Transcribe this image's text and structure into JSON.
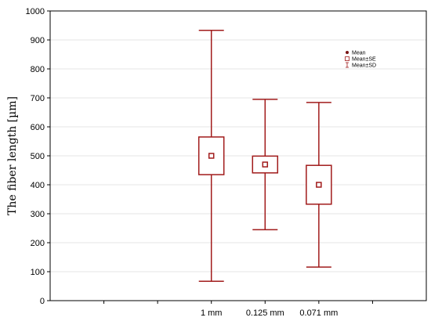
{
  "chart_data": {
    "type": "box",
    "ylabel": "The fiber length  [µm]",
    "xlabel": "",
    "title": "",
    "ylim": [
      0,
      1000
    ],
    "y_ticks": [
      0,
      100,
      200,
      300,
      400,
      500,
      600,
      700,
      800,
      900,
      1000
    ],
    "categories": [
      "1 mm",
      "0.125 mm",
      "0.071 mm"
    ],
    "x_positions": [
      3,
      4,
      5
    ],
    "xlim": [
      0,
      7
    ],
    "grid": "horizontal",
    "legend_placement": "top-right",
    "legend": [
      "Mean",
      "Mean±SE",
      "Mean±SD"
    ],
    "boxes": [
      {
        "category": "1 mm",
        "mean": 500,
        "se_low": 435,
        "se_high": 565,
        "sd_low": 67,
        "sd_high": 933
      },
      {
        "category": "0.125 mm",
        "mean": 470,
        "se_low": 441,
        "se_high": 499,
        "sd_low": 245,
        "sd_high": 695
      },
      {
        "category": "0.071 mm",
        "mean": 400,
        "se_low": 333,
        "se_high": 467,
        "sd_low": 116,
        "sd_high": 684
      }
    ],
    "color": "#a11b1b"
  }
}
